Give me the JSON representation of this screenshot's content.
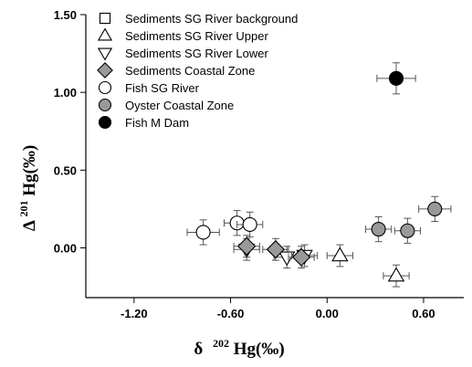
{
  "chart_data": {
    "type": "scatter",
    "xlabel": {
      "delta": "δ",
      "sup": "202",
      "rest": "Hg(‰)"
    },
    "ylabel": {
      "delta": "Δ",
      "sup": "201",
      "rest": "Hg(‰)"
    },
    "xlim": [
      -1.5,
      0.85
    ],
    "ylim": [
      -0.32,
      1.5
    ],
    "x_ticks": [
      -1.2,
      -0.6,
      0.0,
      0.6
    ],
    "x_tick_labels": [
      "-1.20",
      "-0.60",
      "0.00",
      "0.60"
    ],
    "y_ticks": [
      0.0,
      0.5,
      1.0,
      1.5
    ],
    "y_tick_labels": [
      "0.00",
      "0.50",
      "1.00",
      "1.50"
    ],
    "grid": false,
    "legend_position": "top-left",
    "series": [
      {
        "name": "Sediments SG River background",
        "marker": "square-open",
        "color": "#ffffff",
        "points": []
      },
      {
        "name": "Sediments SG River Upper",
        "marker": "triangle-up-open",
        "color": "#ffffff",
        "points": [
          {
            "x": 0.08,
            "y": -0.05,
            "xerr": 0.08,
            "yerr": 0.07
          },
          {
            "x": 0.43,
            "y": -0.18,
            "xerr": 0.08,
            "yerr": 0.07
          }
        ]
      },
      {
        "name": "Sediments SG River Lower",
        "marker": "triangle-down-open",
        "color": "#ffffff",
        "points": [
          {
            "x": -0.5,
            "y": -0.01,
            "xerr": 0.08,
            "yerr": 0.07
          },
          {
            "x": -0.25,
            "y": -0.06,
            "xerr": 0.08,
            "yerr": 0.07
          },
          {
            "x": -0.14,
            "y": -0.05,
            "xerr": 0.08,
            "yerr": 0.07
          }
        ]
      },
      {
        "name": "Sediments  Coastal Zone",
        "marker": "diamond-filled",
        "color": "#999999",
        "points": [
          {
            "x": -0.5,
            "y": 0.01,
            "xerr": 0.08,
            "yerr": 0.07
          },
          {
            "x": -0.32,
            "y": -0.01,
            "xerr": 0.08,
            "yerr": 0.07
          },
          {
            "x": -0.16,
            "y": -0.06,
            "xerr": 0.08,
            "yerr": 0.07
          }
        ]
      },
      {
        "name": "Fish SG River",
        "marker": "circle-open",
        "color": "#ffffff",
        "points": [
          {
            "x": -0.77,
            "y": 0.1,
            "xerr": 0.1,
            "yerr": 0.08
          },
          {
            "x": -0.56,
            "y": 0.16,
            "xerr": 0.08,
            "yerr": 0.08
          },
          {
            "x": -0.48,
            "y": 0.15,
            "xerr": 0.08,
            "yerr": 0.08
          }
        ]
      },
      {
        "name": "Oyster Coastal Zone",
        "marker": "circle-filled",
        "color": "#999999",
        "points": [
          {
            "x": 0.32,
            "y": 0.12,
            "xerr": 0.08,
            "yerr": 0.08
          },
          {
            "x": 0.5,
            "y": 0.11,
            "xerr": 0.08,
            "yerr": 0.08
          },
          {
            "x": 0.67,
            "y": 0.25,
            "xerr": 0.1,
            "yerr": 0.08
          }
        ]
      },
      {
        "name": "Fish M Dam",
        "marker": "circle-filled",
        "color": "#000000",
        "points": [
          {
            "x": 0.43,
            "y": 1.09,
            "xerr": 0.12,
            "yerr": 0.1
          }
        ]
      }
    ]
  }
}
